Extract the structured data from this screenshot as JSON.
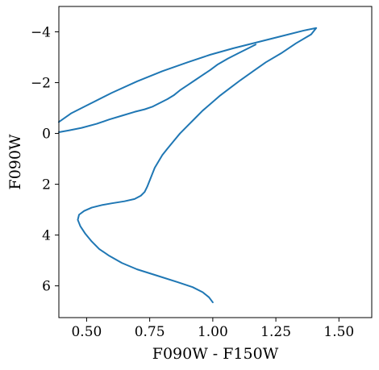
{
  "chart_data": {
    "type": "line",
    "title": "",
    "xlabel": "F090W - F150W",
    "ylabel": "F090W",
    "xlim": [
      0.39,
      1.63
    ],
    "ylim": [
      7.25,
      -5.0
    ],
    "y_inverted": true,
    "grid": false,
    "legend": "none",
    "xticks": [
      0.5,
      0.75,
      1.0,
      1.25,
      1.5
    ],
    "xtick_labels": [
      "0.50",
      "0.75",
      "1.00",
      "1.25",
      "1.50"
    ],
    "yticks": [
      -4,
      -2,
      0,
      2,
      4,
      6
    ],
    "ytick_labels": [
      "−4",
      "−2",
      "0",
      "2",
      "4",
      "6"
    ],
    "series": [
      {
        "color": "#1f77b4",
        "points": [
          [
            1.0,
            6.65
          ],
          [
            0.985,
            6.45
          ],
          [
            0.96,
            6.25
          ],
          [
            0.92,
            6.05
          ],
          [
            0.86,
            5.85
          ],
          [
            0.78,
            5.6
          ],
          [
            0.7,
            5.35
          ],
          [
            0.64,
            5.1
          ],
          [
            0.59,
            4.82
          ],
          [
            0.55,
            4.55
          ],
          [
            0.52,
            4.25
          ],
          [
            0.495,
            3.95
          ],
          [
            0.475,
            3.65
          ],
          [
            0.465,
            3.4
          ],
          [
            0.47,
            3.2
          ],
          [
            0.49,
            3.05
          ],
          [
            0.52,
            2.92
          ],
          [
            0.56,
            2.82
          ],
          [
            0.6,
            2.75
          ],
          [
            0.65,
            2.67
          ],
          [
            0.69,
            2.58
          ],
          [
            0.715,
            2.45
          ],
          [
            0.73,
            2.3
          ],
          [
            0.74,
            2.1
          ],
          [
            0.75,
            1.85
          ],
          [
            0.76,
            1.6
          ],
          [
            0.77,
            1.35
          ],
          [
            0.785,
            1.1
          ],
          [
            0.8,
            0.85
          ],
          [
            0.82,
            0.6
          ],
          [
            0.845,
            0.3
          ],
          [
            0.87,
            0.0
          ],
          [
            0.9,
            -0.3
          ],
          [
            0.93,
            -0.6
          ],
          [
            0.96,
            -0.9
          ],
          [
            0.995,
            -1.2
          ],
          [
            1.03,
            -1.5
          ],
          [
            1.07,
            -1.8
          ],
          [
            1.11,
            -2.1
          ],
          [
            1.16,
            -2.45
          ],
          [
            1.21,
            -2.8
          ],
          [
            1.27,
            -3.15
          ],
          [
            1.33,
            -3.55
          ],
          [
            1.39,
            -3.9
          ],
          [
            1.41,
            -4.15
          ],
          [
            1.36,
            -4.05
          ],
          [
            1.28,
            -3.85
          ],
          [
            1.18,
            -3.6
          ],
          [
            1.08,
            -3.35
          ],
          [
            0.99,
            -3.1
          ],
          [
            0.9,
            -2.8
          ],
          [
            0.8,
            -2.45
          ],
          [
            0.7,
            -2.05
          ],
          [
            0.6,
            -1.6
          ],
          [
            0.5,
            -1.1
          ],
          [
            0.44,
            -0.8
          ],
          [
            0.39,
            -0.45
          ]
        ]
      },
      {
        "color": "#1f77b4",
        "points": [
          [
            1.17,
            -3.5
          ],
          [
            1.14,
            -3.35
          ],
          [
            1.1,
            -3.15
          ],
          [
            1.06,
            -2.95
          ],
          [
            1.02,
            -2.72
          ],
          [
            0.99,
            -2.5
          ],
          [
            0.96,
            -2.3
          ],
          [
            0.93,
            -2.1
          ],
          [
            0.9,
            -1.9
          ],
          [
            0.87,
            -1.7
          ],
          [
            0.845,
            -1.5
          ],
          [
            0.82,
            -1.35
          ],
          [
            0.79,
            -1.2
          ],
          [
            0.76,
            -1.05
          ],
          [
            0.73,
            -0.95
          ],
          [
            0.69,
            -0.85
          ],
          [
            0.64,
            -0.7
          ],
          [
            0.59,
            -0.55
          ],
          [
            0.54,
            -0.38
          ],
          [
            0.48,
            -0.22
          ],
          [
            0.43,
            -0.12
          ],
          [
            0.39,
            -0.05
          ]
        ]
      }
    ]
  }
}
